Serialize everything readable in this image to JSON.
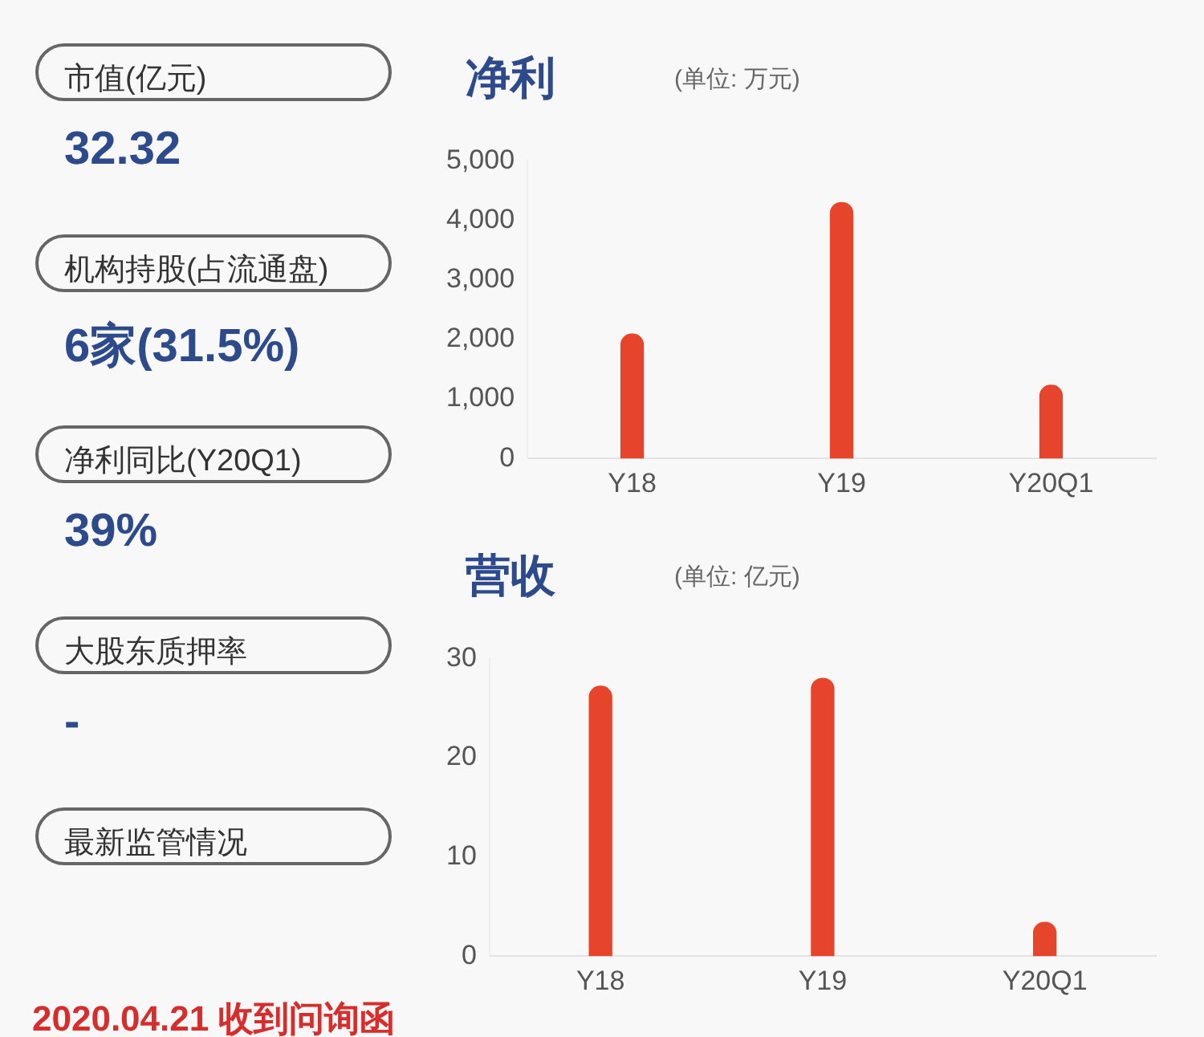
{
  "chart_data": [
    {
      "type": "other",
      "annotations": [
        "市值(亿元)",
        "32.32",
        "机构持股(占流通盘)",
        "6家(31.5%)",
        "净利同比(Y20Q1)",
        "39%",
        "大股东质押率",
        "-",
        "最新监管情况",
        "2020.04.21 收到问询函"
      ]
    },
    {
      "type": "bar",
      "title": "净利",
      "subtitle": "(单位: 万元)",
      "categories": [
        "Y18",
        "Y19",
        "Y20Q1"
      ],
      "values": [
        2090,
        4300,
        1230
      ],
      "color": "#e6452c",
      "ylim": [
        0,
        5000
      ],
      "yticks": [
        0,
        {
          "value": 1000,
          "label": "1,000"
        },
        {
          "value": 2000,
          "label": "2,000"
        },
        {
          "value": 3000,
          "label": "3,000"
        },
        {
          "value": 4000,
          "label": "4,000"
        },
        {
          "value": 5000,
          "label": "5,000"
        }
      ],
      "grid": false,
      "legend": false
    },
    {
      "type": "bar",
      "title": "营收",
      "subtitle": "(单位: 亿元)",
      "categories": [
        "Y18",
        "Y19",
        "Y20Q1"
      ],
      "values": [
        27.2,
        28.0,
        3.4
      ],
      "color": "#e6452c",
      "ylim": [
        0,
        30
      ],
      "yticks": [
        0,
        10,
        20,
        30
      ],
      "grid": false,
      "legend": false
    }
  ]
}
